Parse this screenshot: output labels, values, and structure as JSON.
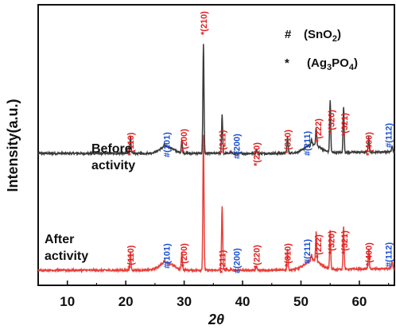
{
  "chart_data": {
    "type": "line",
    "xlabel": "2θ",
    "ylabel": "Intensity(a.u.)",
    "xlim": [
      5,
      66
    ],
    "xticks": [
      "10",
      "20",
      "30",
      "40",
      "50",
      "60"
    ],
    "legend": {
      "placement": "top-right",
      "items": [
        {
          "symbol": "#",
          "name_main": "(SnO",
          "name_sub": "2",
          "name_end": ")"
        },
        {
          "symbol": "*",
          "name_main": "(Ag",
          "name_sub": "3",
          "name_mid": "PO",
          "name_sub2": "4",
          "name_end": ")"
        }
      ]
    },
    "series": [
      {
        "name_line1": "Before",
        "name_line2": "activity",
        "color": "#3a3a3a",
        "baseline": 1.0,
        "broad": [
          [
            27.0,
            0.18,
            1.6
          ],
          [
            52.0,
            0.22,
            1.8
          ]
        ],
        "peaks": [
          [
            20.8,
            0.45
          ],
          [
            26.6,
            0.06
          ],
          [
            29.6,
            0.35
          ],
          [
            33.3,
            2.85
          ],
          [
            36.5,
            1.0
          ],
          [
            38.0,
            0.04
          ],
          [
            42.4,
            0.1
          ],
          [
            47.7,
            0.42
          ],
          [
            51.8,
            0.12
          ],
          [
            52.6,
            0.45
          ],
          [
            55.0,
            1.35
          ],
          [
            57.3,
            1.2
          ],
          [
            61.6,
            0.38
          ],
          [
            65.6,
            0.15
          ]
        ]
      },
      {
        "name_line1": "After",
        "name_line2": "activity",
        "color": "#e8403a",
        "baseline": 0.0,
        "broad": [
          [
            27.0,
            0.2,
            1.6
          ],
          [
            52.0,
            0.25,
            1.8
          ]
        ],
        "peaks": [
          [
            20.8,
            0.5
          ],
          [
            26.6,
            0.07
          ],
          [
            29.6,
            0.45
          ],
          [
            33.3,
            3.5
          ],
          [
            36.5,
            1.68
          ],
          [
            38.0,
            0.05
          ],
          [
            42.4,
            0.1
          ],
          [
            47.7,
            0.55
          ],
          [
            51.8,
            0.15
          ],
          [
            52.6,
            0.75
          ],
          [
            55.0,
            0.98
          ],
          [
            57.3,
            1.1
          ],
          [
            61.6,
            0.5
          ],
          [
            65.6,
            0.2
          ]
        ]
      }
    ],
    "annotations": {
      "before": [
        {
          "x": 20.8,
          "text": "*(110)",
          "color": "#e02020"
        },
        {
          "x": 27.0,
          "text": "#(101)",
          "color": "#1a4fd6"
        },
        {
          "x": 29.9,
          "text": "*(200)",
          "color": "#e02020"
        },
        {
          "x": 33.3,
          "text": "*(210)",
          "color": "#e02020"
        },
        {
          "x": 36.5,
          "text": "*(211)",
          "color": "#e02020"
        },
        {
          "x": 39.0,
          "text": "#(200)",
          "color": "#1a4fd6"
        },
        {
          "x": 42.4,
          "text": "*(220)",
          "color": "#e02020"
        },
        {
          "x": 47.7,
          "text": "*(310)",
          "color": "#e02020"
        },
        {
          "x": 51.0,
          "text": "#(211)",
          "color": "#1a4fd6"
        },
        {
          "x": 52.9,
          "text": "*(222)",
          "color": "#e02020"
        },
        {
          "x": 55.2,
          "text": "*(320)",
          "color": "#e02020"
        },
        {
          "x": 57.4,
          "text": "*(321)",
          "color": "#e02020"
        },
        {
          "x": 61.6,
          "text": "*(400)",
          "color": "#e02020"
        },
        {
          "x": 65.0,
          "text": "#(112)",
          "color": "#1a4fd6"
        }
      ],
      "after": [
        {
          "x": 20.8,
          "text": "*(110)",
          "color": "#e02020"
        },
        {
          "x": 27.0,
          "text": "#(101)",
          "color": "#1a4fd6"
        },
        {
          "x": 29.9,
          "text": "*(200)",
          "color": "#e02020"
        },
        {
          "x": 36.5,
          "text": "*(211)",
          "color": "#e02020"
        },
        {
          "x": 39.0,
          "text": "#(200)",
          "color": "#1a4fd6"
        },
        {
          "x": 42.4,
          "text": "*(220)",
          "color": "#e02020"
        },
        {
          "x": 47.7,
          "text": "*(310)",
          "color": "#e02020"
        },
        {
          "x": 51.0,
          "text": "#(211)",
          "color": "#1a4fd6"
        },
        {
          "x": 52.9,
          "text": "*(222)",
          "color": "#e02020"
        },
        {
          "x": 55.2,
          "text": "*(320)",
          "color": "#e02020"
        },
        {
          "x": 57.4,
          "text": "*(321)",
          "color": "#e02020"
        },
        {
          "x": 61.6,
          "text": "*(400)",
          "color": "#e02020"
        },
        {
          "x": 65.0,
          "text": "#(112)",
          "color": "#1a4fd6"
        }
      ]
    }
  }
}
